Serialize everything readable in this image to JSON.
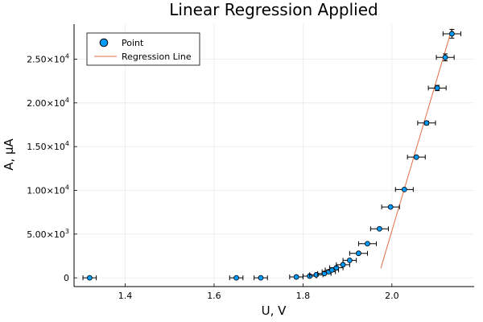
{
  "chart_data": {
    "type": "scatter",
    "title": "Linear Regression Applied",
    "xlabel": "U, V",
    "ylabel": "A, μA",
    "xlim": [
      1.285,
      2.185
    ],
    "ylim": [
      -1000,
      29000
    ],
    "grid": true,
    "legend_position": "top-left",
    "x_ticks": [
      {
        "value": 1.4,
        "label": "1.4"
      },
      {
        "value": 1.6,
        "label": "1.6"
      },
      {
        "value": 1.8,
        "label": "1.8"
      },
      {
        "value": 2.0,
        "label": "2.0"
      }
    ],
    "y_ticks": [
      {
        "value": 0,
        "mant": "0",
        "exp": ""
      },
      {
        "value": 5000,
        "mant": "5.00×10",
        "exp": "3"
      },
      {
        "value": 10000,
        "mant": "1.00×10",
        "exp": "4"
      },
      {
        "value": 15000,
        "mant": "1.50×10",
        "exp": "4"
      },
      {
        "value": 20000,
        "mant": "2.00×10",
        "exp": "4"
      },
      {
        "value": 25000,
        "mant": "2.50×10",
        "exp": "4"
      }
    ],
    "series": [
      {
        "name": "Point",
        "kind": "scatter",
        "color": "#009AFA",
        "x": [
          1.32,
          1.65,
          1.705,
          1.785,
          1.815,
          1.83,
          1.848,
          1.858,
          1.865,
          1.875,
          1.89,
          1.905,
          1.925,
          1.945,
          1.972,
          1.997,
          2.028,
          2.055,
          2.078,
          2.102,
          2.12,
          2.135
        ],
        "y": [
          0,
          0,
          0,
          100,
          200,
          350,
          500,
          700,
          900,
          1150,
          1500,
          2000,
          2800,
          3900,
          5600,
          8100,
          10100,
          13800,
          17700,
          21700,
          25200,
          27900
        ],
        "x_err": [
          0.015,
          0.015,
          0.015,
          0.015,
          0.015,
          0.015,
          0.015,
          0.015,
          0.015,
          0.015,
          0.015,
          0.015,
          0.02,
          0.02,
          0.02,
          0.02,
          0.02,
          0.02,
          0.02,
          0.02,
          0.02,
          0.02
        ],
        "y_err": [
          0,
          0,
          0,
          0,
          0,
          0,
          0,
          0,
          0,
          0,
          0,
          0,
          0,
          0,
          0,
          0,
          0,
          0,
          200,
          300,
          400,
          500
        ]
      },
      {
        "name": "Regression Line",
        "kind": "line",
        "color": "#E26F46",
        "x": [
          1.975,
          2.135
        ],
        "y": [
          1100,
          28500
        ]
      }
    ]
  }
}
